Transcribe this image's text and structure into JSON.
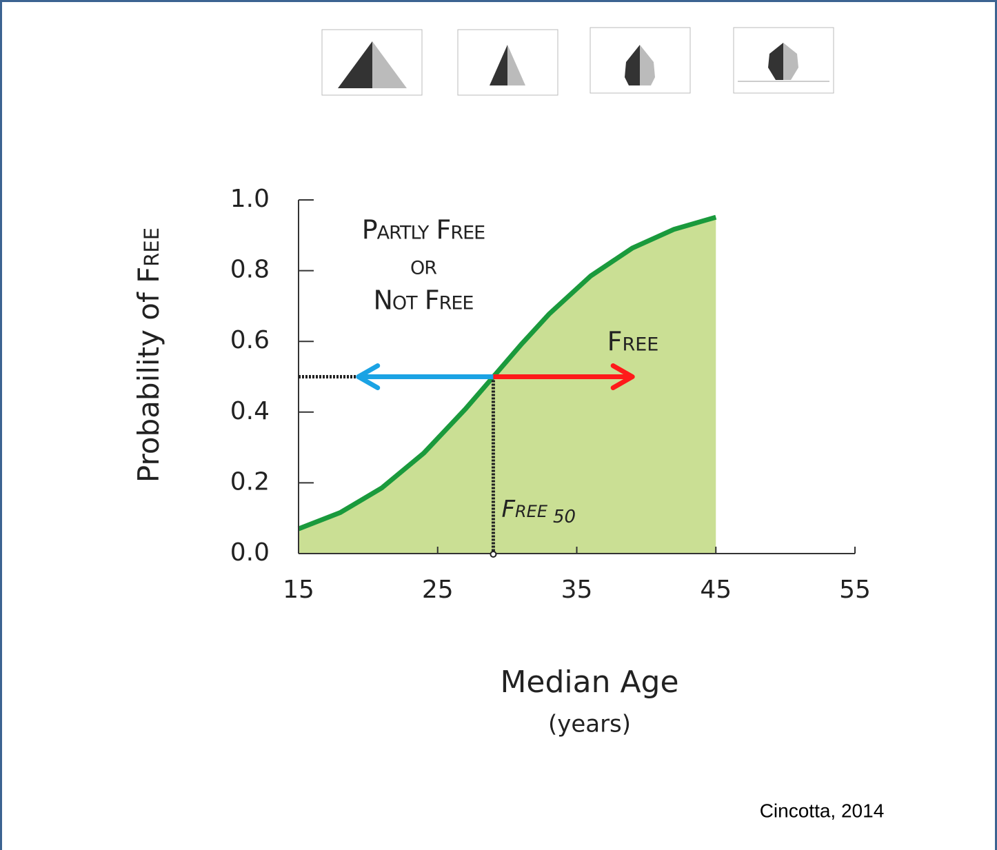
{
  "chart_data": {
    "type": "line",
    "x": [
      15,
      18,
      21,
      24,
      27,
      29,
      31,
      33,
      36,
      39,
      42,
      45
    ],
    "series": [
      {
        "color": "#1a9a3c",
        "fill": "#cadf94",
        "values": [
          0.07,
          0.116,
          0.186,
          0.284,
          0.409,
          0.5,
          0.591,
          0.677,
          0.785,
          0.864,
          0.917,
          0.951
        ]
      }
    ],
    "xlim": [
      15,
      55
    ],
    "xticks": [
      15,
      25,
      35,
      45,
      55
    ],
    "ylim": [
      0,
      1
    ],
    "yticks": [
      {
        "value": 0,
        "label": "0.0"
      },
      0.2,
      0.4,
      0.6,
      0.8,
      {
        "value": 1,
        "label": "1.0"
      }
    ],
    "y_label": [
      "Probability of",
      "Free"
    ],
    "x_label": "Median Age",
    "x_label_unit": "(years)",
    "annotations": {
      "not_free": [
        "Partly Free",
        "or",
        "Not Free"
      ],
      "free": "Free"
    },
    "free50": {
      "x": 29,
      "y": 0.5,
      "label": "Free",
      "subscript": "50"
    },
    "arrows": [
      {
        "from": 29,
        "to": 19.3,
        "color": "#1ba3e4"
      },
      {
        "from": 29,
        "to": 39,
        "color": "#ff1a1a"
      }
    ],
    "source": "Cincotta, 2014"
  }
}
